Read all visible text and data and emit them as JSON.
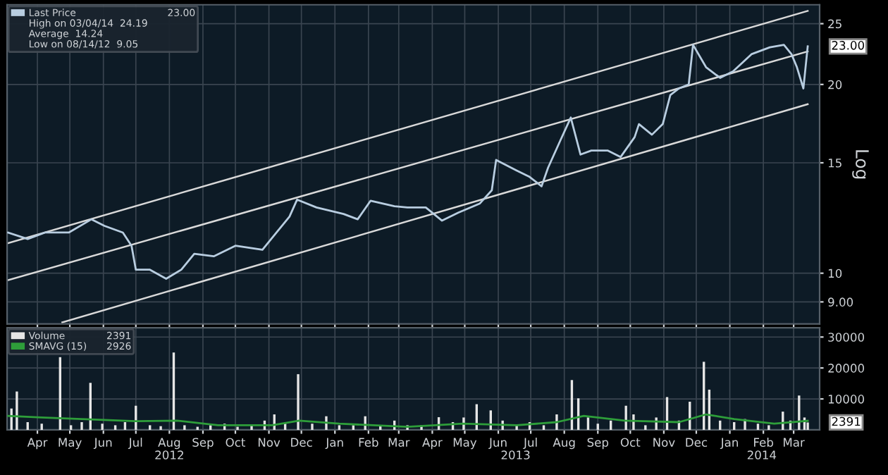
{
  "chart_data": [
    {
      "type": "line",
      "ylabel": "Log",
      "log": "y",
      "ylim": [
        8.3,
        26.8
      ],
      "yticks": [
        {
          "value": 9,
          "label": "9.00"
        },
        10,
        15,
        20,
        25
      ],
      "xlim": [
        "2012-03-18",
        "2014-04-08"
      ],
      "xticks": [
        {
          "value": "2012-04-15",
          "label": null
        },
        {
          "value": "2012-05-15",
          "label": null
        },
        {
          "value": "2012-06-15",
          "label": null
        },
        {
          "value": "2012-07-15",
          "label": null
        },
        {
          "value": "2012-08-15",
          "label": null
        },
        {
          "value": "2012-09-15",
          "label": null
        },
        {
          "value": "2012-10-15",
          "label": null
        },
        {
          "value": "2012-11-15",
          "label": null
        },
        {
          "value": "2012-12-15",
          "label": null
        },
        {
          "value": "2013-01-15",
          "label": null
        },
        {
          "value": "2013-02-15",
          "label": null
        },
        {
          "value": "2013-03-15",
          "label": null
        },
        {
          "value": "2013-04-15",
          "label": null
        },
        {
          "value": "2013-05-15",
          "label": null
        },
        {
          "value": "2013-06-15",
          "label": null
        },
        {
          "value": "2013-07-15",
          "label": null
        },
        {
          "value": "2013-08-15",
          "label": null
        },
        {
          "value": "2013-09-15",
          "label": null
        },
        {
          "value": "2013-10-15",
          "label": null
        },
        {
          "value": "2013-11-15",
          "label": null
        },
        {
          "value": "2013-12-15",
          "label": null
        },
        {
          "value": "2014-01-15",
          "label": null
        },
        {
          "value": "2014-02-15",
          "label": null
        },
        {
          "value": "2014-03-15",
          "label": null
        }
      ],
      "tick_labels": "y",
      "grid": true,
      "legend": "top left",
      "series": [
        {
          "name": "Last Price",
          "color": "#b8cde0",
          "x": [
            "2012-03-19",
            "2012-04-06",
            "2012-04-22",
            "2012-05-14",
            "2012-06-04",
            "2012-06-16",
            "2012-07-03",
            "2012-07-11",
            "2012-07-15",
            "2012-07-28",
            "2012-08-12",
            "2012-08-26",
            "2012-09-07",
            "2012-09-25",
            "2012-10-15",
            "2012-11-09",
            "2012-11-22",
            "2012-12-04",
            "2012-12-11",
            "2012-12-29",
            "2013-01-23",
            "2013-02-05",
            "2013-02-17",
            "2013-03-11",
            "2013-03-23",
            "2013-04-09",
            "2013-04-24",
            "2013-05-09",
            "2013-05-29",
            "2013-06-09",
            "2013-06-13",
            "2013-07-02",
            "2013-07-14",
            "2013-07-25",
            "2013-07-31",
            "2013-08-11",
            "2013-08-21",
            "2013-08-30",
            "2013-09-09",
            "2013-09-24",
            "2013-10-06",
            "2013-10-19",
            "2013-10-23",
            "2013-11-04",
            "2013-11-14",
            "2013-11-21",
            "2013-11-29",
            "2013-12-08",
            "2013-12-12",
            "2013-12-24",
            "2014-01-06",
            "2014-01-18",
            "2014-02-04",
            "2014-02-21",
            "2014-03-06",
            "2014-03-13",
            "2014-03-18",
            "2014-03-24",
            "2014-03-28"
          ],
          "values": [
            11.61,
            11.34,
            11.61,
            11.61,
            12.19,
            11.9,
            11.61,
            11.06,
            10.13,
            10.13,
            9.8,
            10.13,
            10.74,
            10.64,
            11.06,
            10.9,
            11.61,
            12.31,
            13.1,
            12.73,
            12.43,
            12.19,
            13.05,
            12.79,
            12.73,
            12.73,
            12.13,
            12.49,
            12.92,
            13.56,
            15.16,
            14.58,
            14.24,
            13.76,
            14.73,
            16.23,
            17.71,
            15.46,
            15.69,
            15.69,
            15.32,
            16.48,
            17.29,
            16.63,
            17.29,
            19.24,
            19.71,
            20.0,
            23.13,
            21.31,
            20.49,
            20.99,
            22.35,
            22.92,
            23.13,
            22.35,
            21.31,
            19.71,
            23.0
          ]
        },
        {
          "color": "#d9d9d9",
          "x": [
            "2012-03-19",
            "2014-03-28"
          ],
          "values": [
            11.17,
            26.2
          ]
        },
        {
          "color": "#d9d9d9",
          "x": [
            "2012-03-19",
            "2014-03-28"
          ],
          "values": [
            9.75,
            22.58
          ]
        },
        {
          "color": "#d9d9d9",
          "x": [
            "2012-05-08",
            "2014-03-28"
          ],
          "values": [
            8.35,
            18.6
          ]
        }
      ],
      "annotations": [
        {
          "text": "23.00",
          "x": "2014-03-28",
          "y": 23.0
        },
        "23.00",
        "High on 03/04/14  24.19",
        "Average  14.24",
        "Low on 08/14/12  9.05"
      ]
    },
    {
      "type": "bar",
      "ylim": [
        0,
        33000
      ],
      "yticks": [
        10000,
        20000,
        30000
      ],
      "xlim": [
        "2012-03-18",
        "2014-04-08"
      ],
      "xticks": [
        {
          "value": "2012-04-15",
          "label": "Apr"
        },
        {
          "value": "2012-05-15",
          "label": "May"
        },
        {
          "value": "2012-06-15",
          "label": "Jun"
        },
        {
          "value": "2012-07-15",
          "label": "Jul"
        },
        {
          "value": "2012-08-15",
          "label": "Aug"
        },
        {
          "value": "2012-09-15",
          "label": "Sep"
        },
        {
          "value": "2012-10-15",
          "label": "Oct"
        },
        {
          "value": "2012-11-15",
          "label": "Nov"
        },
        {
          "value": "2012-12-15",
          "label": "Dec"
        },
        {
          "value": "2013-01-15",
          "label": "Jan"
        },
        {
          "value": "2013-02-15",
          "label": "Feb"
        },
        {
          "value": "2013-03-15",
          "label": "Mar"
        },
        {
          "value": "2013-04-15",
          "label": "Apr"
        },
        {
          "value": "2013-05-15",
          "label": "May"
        },
        {
          "value": "2013-06-15",
          "label": "Jun"
        },
        {
          "value": "2013-07-15",
          "label": "Jul"
        },
        {
          "value": "2013-08-15",
          "label": "Aug"
        },
        {
          "value": "2013-09-15",
          "label": "Sep"
        },
        {
          "value": "2013-10-15",
          "label": "Oct"
        },
        {
          "value": "2013-11-15",
          "label": "Nov"
        },
        {
          "value": "2013-12-15",
          "label": "Dec"
        },
        {
          "value": "2014-01-15",
          "label": "Jan"
        },
        {
          "value": "2014-02-15",
          "label": "Feb"
        },
        {
          "value": "2014-03-15",
          "label": "Mar"
        }
      ],
      "grid": true,
      "legend": "top left",
      "series": [
        {
          "name": "Volume",
          "color": "#e6e6e6",
          "x": [
            "2012-03-22",
            "2012-03-27",
            "2012-04-06",
            "2012-04-19",
            "2012-05-06",
            "2012-05-16",
            "2012-05-26",
            "2012-06-03",
            "2012-06-14",
            "2012-06-26",
            "2012-07-05",
            "2012-07-15",
            "2012-07-28",
            "2012-08-07",
            "2012-08-19",
            "2012-08-29",
            "2012-09-10",
            "2012-09-22",
            "2012-10-05",
            "2012-10-17",
            "2012-10-30",
            "2012-11-11",
            "2012-11-20",
            "2012-11-30",
            "2012-12-12",
            "2012-12-25",
            "2013-01-07",
            "2013-01-19",
            "2013-02-01",
            "2013-02-12",
            "2013-02-26",
            "2013-03-11",
            "2013-03-23",
            "2013-04-05",
            "2013-04-21",
            "2013-05-04",
            "2013-05-14",
            "2013-05-26",
            "2013-06-08",
            "2013-06-19",
            "2013-07-02",
            "2013-07-14",
            "2013-07-27",
            "2013-08-08",
            "2013-08-22",
            "2013-08-28",
            "2013-09-06",
            "2013-09-15",
            "2013-09-27",
            "2013-10-11",
            "2013-10-18",
            "2013-10-29",
            "2013-11-08",
            "2013-11-18",
            "2013-11-29",
            "2013-12-09",
            "2013-12-22",
            "2013-12-27",
            "2014-01-06",
            "2014-01-19",
            "2014-01-29",
            "2014-02-10",
            "2014-02-20",
            "2014-03-05",
            "2014-03-12",
            "2014-03-20",
            "2014-03-25",
            "2014-03-28"
          ],
          "values": [
            6900,
            12400,
            2500,
            2000,
            23500,
            1500,
            2500,
            15200,
            2000,
            1500,
            2500,
            7800,
            1500,
            1200,
            25000,
            1500,
            1000,
            1500,
            2000,
            1000,
            1500,
            3000,
            5000,
            2000,
            18000,
            2000,
            4400,
            1500,
            1500,
            4400,
            1200,
            3000,
            1500,
            1500,
            4100,
            2500,
            4000,
            8300,
            6300,
            3000,
            1500,
            2500,
            1500,
            5000,
            16100,
            10200,
            4000,
            2000,
            3000,
            7800,
            5000,
            1500,
            4000,
            10600,
            3000,
            9100,
            22000,
            13000,
            3000,
            2500,
            3500,
            2000,
            1500,
            5900,
            3000,
            11100,
            4000,
            2391
          ]
        },
        {
          "name": "SMAVG (15)",
          "type": "line",
          "color": "#2e9e3a",
          "x": [
            "2012-03-19",
            "2012-04-19",
            "2012-05-26",
            "2012-07-15",
            "2012-08-22",
            "2012-09-29",
            "2012-11-18",
            "2012-12-13",
            "2013-01-19",
            "2013-03-23",
            "2013-05-13",
            "2013-07-02",
            "2013-08-08",
            "2013-09-02",
            "2013-10-10",
            "2013-11-29",
            "2013-12-24",
            "2014-01-19",
            "2014-02-25",
            "2014-03-28"
          ],
          "values": [
            4500,
            4000,
            3500,
            2800,
            3000,
            1500,
            1500,
            3000,
            2000,
            1000,
            2000,
            1500,
            2500,
            4500,
            3000,
            2500,
            5000,
            3500,
            2000,
            2926
          ]
        }
      ],
      "annotations": [
        {
          "text": "2391",
          "x": "2014-03-28",
          "y": 2391
        },
        "2391",
        "2926",
        "2012",
        "2013",
        "2014"
      ]
    }
  ]
}
